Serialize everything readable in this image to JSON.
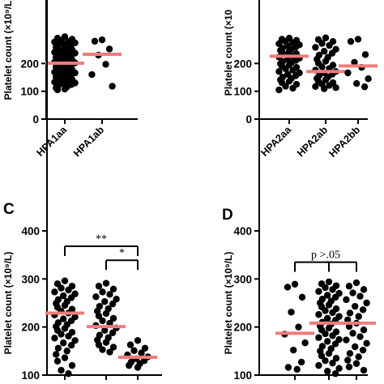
{
  "chart_data": [
    {
      "panel_label": "",
      "type": "scatter",
      "ylabel": "Platelet count (×10⁹/L)",
      "ylim": [
        0,
        300
      ],
      "yticks": [
        0,
        100,
        200
      ],
      "categories": [
        "HPA1aa",
        "HPA1ab"
      ],
      "series": [
        {
          "category": "HPA1aa",
          "mean": 201,
          "values": [
            296,
            291,
            287,
            283,
            279,
            277,
            274,
            271,
            268,
            265,
            262,
            258,
            255,
            252,
            249,
            246,
            243,
            240,
            237,
            234,
            231,
            228,
            225,
            222,
            219,
            216,
            213,
            210,
            207,
            205,
            202,
            199,
            196,
            193,
            190,
            187,
            184,
            181,
            178,
            175,
            172,
            169,
            166,
            163,
            160,
            157,
            154,
            151,
            148,
            145,
            142,
            139,
            136,
            133,
            130,
            127,
            124,
            120,
            116,
            112,
            108,
            105
          ]
        },
        {
          "category": "HPA1ab",
          "mean": 233,
          "values": [
            285,
            280,
            252,
            230,
            197,
            160,
            118
          ]
        }
      ]
    },
    {
      "panel_label": "",
      "type": "scatter",
      "ylabel": "Platelet count (×10",
      "ylim": [
        0,
        300
      ],
      "yticks": [
        0,
        100,
        200
      ],
      "categories": [
        "HPA2aa",
        "HPA2ab",
        "HPA2bb"
      ],
      "series": [
        {
          "category": "HPA2aa",
          "mean": 226,
          "values": [
            291,
            287,
            283,
            279,
            275,
            271,
            267,
            263,
            259,
            255,
            251,
            247,
            243,
            239,
            235,
            231,
            227,
            223,
            219,
            215,
            211,
            207,
            203,
            199,
            195,
            191,
            186,
            181,
            176,
            171,
            166,
            161,
            156,
            151,
            146,
            141,
            136,
            131,
            125,
            118,
            111,
            105
          ]
        },
        {
          "category": "HPA2ab",
          "mean": 171,
          "values": [
            292,
            286,
            279,
            272,
            265,
            258,
            251,
            244,
            237,
            230,
            222,
            215,
            208,
            201,
            194,
            188,
            182,
            176,
            171,
            166,
            161,
            156,
            151,
            146,
            141,
            136,
            131,
            126,
            121,
            117,
            113,
            109
          ]
        },
        {
          "category": "HPA2bb",
          "mean": 191,
          "values": [
            287,
            279,
            232,
            204,
            186,
            166,
            145,
            128,
            116
          ]
        }
      ]
    },
    {
      "panel_label": "C",
      "type": "scatter",
      "ylabel": "Platelet count (×10⁹/L)",
      "ylim": [
        100,
        400
      ],
      "yticks": [
        100,
        200,
        300,
        400
      ],
      "categories": [
        "",
        "",
        ""
      ],
      "series": [
        {
          "category": "",
          "mean": 229,
          "values": [
            296,
            290,
            285,
            281,
            277,
            273,
            269,
            265,
            261,
            257,
            253,
            249,
            245,
            241,
            237,
            233,
            229,
            225,
            221,
            217,
            213,
            209,
            205,
            201,
            197,
            193,
            189,
            185,
            181,
            177,
            172,
            167,
            162,
            156,
            150,
            143,
            136,
            129,
            120,
            110,
            103
          ]
        },
        {
          "category": "",
          "mean": 201,
          "values": [
            291,
            285,
            279,
            273,
            268,
            263,
            258,
            253,
            248,
            243,
            238,
            233,
            228,
            223,
            218,
            213,
            208,
            203,
            198,
            193,
            188,
            183,
            178,
            173,
            168,
            163,
            158,
            153,
            148
          ]
        },
        {
          "category": "",
          "mean": 137,
          "values": [
            172,
            163,
            156,
            151,
            146,
            142,
            138,
            134,
            130,
            127,
            124,
            120,
            116
          ]
        }
      ],
      "annotations": [
        {
          "text": "**",
          "between": [
            0,
            2
          ],
          "y": 368
        },
        {
          "text": "*",
          "between": [
            1,
            2
          ],
          "y": 339
        }
      ]
    },
    {
      "panel_label": "D",
      "type": "scatter",
      "ylabel": "Platelet count (×10⁹/L)",
      "ylim": [
        100,
        400
      ],
      "yticks": [
        100,
        200,
        300,
        400
      ],
      "categories": [
        "",
        "",
        ""
      ],
      "series": [
        {
          "category": "",
          "mean": 187,
          "values": [
            289,
            283,
            262,
            231,
            200,
            185,
            167,
            152,
            127,
            116,
            112
          ]
        },
        {
          "category": "",
          "mean": 208,
          "values": [
            294,
            290,
            286,
            282,
            278,
            274,
            270,
            266,
            262,
            258,
            254,
            250,
            246,
            242,
            238,
            234,
            230,
            226,
            222,
            218,
            214,
            210,
            206,
            202,
            198,
            194,
            190,
            186,
            182,
            178,
            174,
            170,
            165,
            160,
            155,
            150,
            145,
            140,
            135,
            130,
            125,
            120,
            114,
            108,
            103
          ]
        },
        {
          "category": "",
          "mean": 208,
          "values": [
            292,
            285,
            278,
            271,
            264,
            257,
            250,
            243,
            236,
            229,
            222,
            215,
            208,
            201,
            194,
            187,
            180,
            173,
            166,
            159,
            152,
            145,
            138,
            131,
            124,
            117,
            110
          ]
        }
      ],
      "annotations": [
        {
          "text": "p >.05",
          "between": [
            0,
            1,
            2
          ],
          "y": 335
        }
      ]
    }
  ],
  "colors": {
    "points": "#000000",
    "mean": "#f07c7c",
    "axis": "#000000"
  }
}
